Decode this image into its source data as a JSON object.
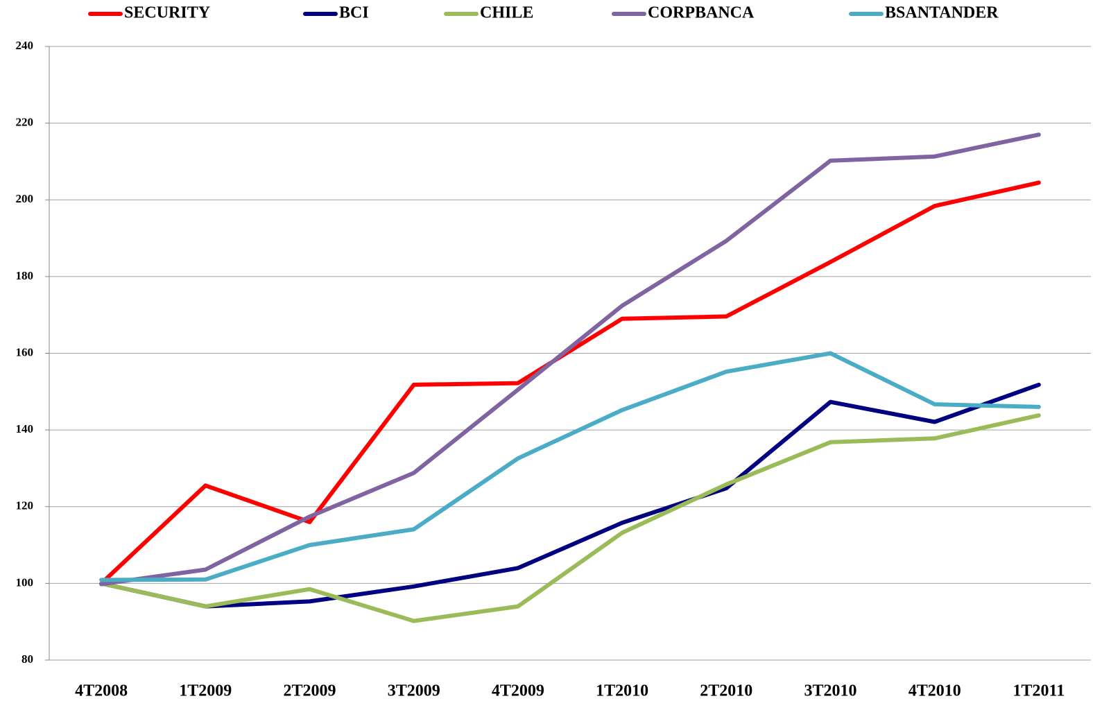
{
  "chart_data": {
    "type": "line",
    "categories": [
      "4T2008",
      "1T2009",
      "2T2009",
      "3T2009",
      "4T2009",
      "1T2010",
      "2T2010",
      "3T2010",
      "4T2010",
      "1T2011"
    ],
    "series": [
      {
        "name": "SECURITY",
        "color": "#ff0000",
        "values": [
          100,
          125.5,
          116,
          151.8,
          152.2,
          169,
          169.6,
          183.8,
          198.4,
          204.5
        ]
      },
      {
        "name": "BCI",
        "color": "#000080",
        "values": [
          100,
          94,
          95.3,
          99.2,
          104,
          115.8,
          124.8,
          147.3,
          142.1,
          151.8
        ]
      },
      {
        "name": "CHILE",
        "color": "#9bbb59",
        "values": [
          100,
          94,
          98.5,
          90.2,
          94,
          113.2,
          125.8,
          136.8,
          137.8,
          143.8
        ]
      },
      {
        "name": "CORPBANCA",
        "color": "#8064a2",
        "values": [
          99.8,
          103.6,
          117.4,
          128.8,
          150.5,
          172.4,
          189.3,
          210.2,
          211.3,
          217
        ]
      },
      {
        "name": "BSANTANDER",
        "color": "#4bacc6",
        "values": [
          100.9,
          101,
          110,
          114.1,
          132.6,
          145.2,
          155.2,
          160,
          146.7,
          146
        ]
      }
    ],
    "ylim": [
      80,
      240
    ],
    "yticks": [
      80,
      100,
      120,
      140,
      160,
      180,
      200,
      220,
      240
    ],
    "grid": true,
    "legend": "top"
  }
}
